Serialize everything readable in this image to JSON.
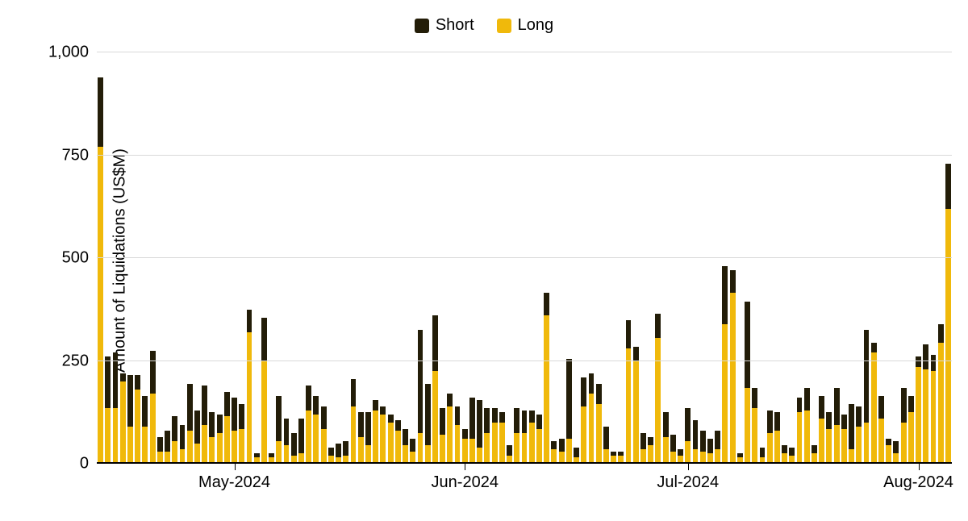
{
  "chart": {
    "type": "stacked-bar",
    "background_color": "#ffffff",
    "grid_color": "#d9d9d9",
    "baseline_color": "#000000",
    "font_family": "Arial, Helvetica, sans-serif",
    "legend": {
      "items": [
        {
          "name": "Short",
          "color": "#231d08"
        },
        {
          "name": "Long",
          "color": "#f0b90b"
        }
      ],
      "fontsize": 20
    },
    "y_axis": {
      "label": "Amount of Liquidations (US$M)",
      "label_fontsize": 20,
      "tick_fontsize": 20,
      "min": 0,
      "max": 1000,
      "ticks": [
        {
          "value": 0,
          "label": "0"
        },
        {
          "value": 250,
          "label": "250"
        },
        {
          "value": 500,
          "label": "500"
        },
        {
          "value": 750,
          "label": "750"
        },
        {
          "value": 1000,
          "label": "1,000"
        }
      ]
    },
    "x_axis": {
      "tick_fontsize": 20,
      "ticks": [
        {
          "index": 18,
          "label": "May-2024"
        },
        {
          "index": 49,
          "label": "Jun-2024"
        },
        {
          "index": 79,
          "label": "Jul-2024"
        },
        {
          "index": 110,
          "label": "Aug-2024"
        }
      ]
    },
    "series_colors": {
      "long": "#f0b90b",
      "short": "#231d08"
    },
    "bar_gap_ratio": 0.25,
    "data": [
      {
        "long": 770,
        "short": 170
      },
      {
        "long": 135,
        "short": 125
      },
      {
        "long": 135,
        "short": 135
      },
      {
        "long": 200,
        "short": 20
      },
      {
        "long": 90,
        "short": 125
      },
      {
        "long": 180,
        "short": 35
      },
      {
        "long": 90,
        "short": 75
      },
      {
        "long": 170,
        "short": 105
      },
      {
        "long": 30,
        "short": 35
      },
      {
        "long": 30,
        "short": 50
      },
      {
        "long": 55,
        "short": 60
      },
      {
        "long": 35,
        "short": 60
      },
      {
        "long": 80,
        "short": 115
      },
      {
        "long": 50,
        "short": 80
      },
      {
        "long": 95,
        "short": 95
      },
      {
        "long": 65,
        "short": 60
      },
      {
        "long": 75,
        "short": 45
      },
      {
        "long": 115,
        "short": 60
      },
      {
        "long": 80,
        "short": 80
      },
      {
        "long": 85,
        "short": 60
      },
      {
        "long": 320,
        "short": 55
      },
      {
        "long": 15,
        "short": 10
      },
      {
        "long": 250,
        "short": 105
      },
      {
        "long": 15,
        "short": 10
      },
      {
        "long": 55,
        "short": 110
      },
      {
        "long": 45,
        "short": 65
      },
      {
        "long": 20,
        "short": 55
      },
      {
        "long": 25,
        "short": 85
      },
      {
        "long": 130,
        "short": 60
      },
      {
        "long": 120,
        "short": 45
      },
      {
        "long": 85,
        "short": 55
      },
      {
        "long": 20,
        "short": 20
      },
      {
        "long": 15,
        "short": 35
      },
      {
        "long": 20,
        "short": 35
      },
      {
        "long": 140,
        "short": 65
      },
      {
        "long": 65,
        "short": 60
      },
      {
        "long": 45,
        "short": 80
      },
      {
        "long": 130,
        "short": 25
      },
      {
        "long": 120,
        "short": 20
      },
      {
        "long": 100,
        "short": 20
      },
      {
        "long": 80,
        "short": 25
      },
      {
        "long": 45,
        "short": 40
      },
      {
        "long": 30,
        "short": 30
      },
      {
        "long": 75,
        "short": 250
      },
      {
        "long": 45,
        "short": 150
      },
      {
        "long": 225,
        "short": 135
      },
      {
        "long": 70,
        "short": 65
      },
      {
        "long": 140,
        "short": 30
      },
      {
        "long": 95,
        "short": 45
      },
      {
        "long": 60,
        "short": 25
      },
      {
        "long": 60,
        "short": 100
      },
      {
        "long": 40,
        "short": 115
      },
      {
        "long": 75,
        "short": 60
      },
      {
        "long": 100,
        "short": 35
      },
      {
        "long": 100,
        "short": 25
      },
      {
        "long": 20,
        "short": 25
      },
      {
        "long": 75,
        "short": 60
      },
      {
        "long": 75,
        "short": 55
      },
      {
        "long": 100,
        "short": 30
      },
      {
        "long": 85,
        "short": 35
      },
      {
        "long": 360,
        "short": 55
      },
      {
        "long": 35,
        "short": 20
      },
      {
        "long": 30,
        "short": 30
      },
      {
        "long": 60,
        "short": 195
      },
      {
        "long": 15,
        "short": 25
      },
      {
        "long": 140,
        "short": 70
      },
      {
        "long": 170,
        "short": 50
      },
      {
        "long": 145,
        "short": 50
      },
      {
        "long": 35,
        "short": 55
      },
      {
        "long": 20,
        "short": 10
      },
      {
        "long": 20,
        "short": 10
      },
      {
        "long": 280,
        "short": 70
      },
      {
        "long": 250,
        "short": 35
      },
      {
        "long": 35,
        "short": 40
      },
      {
        "long": 45,
        "short": 20
      },
      {
        "long": 305,
        "short": 60
      },
      {
        "long": 65,
        "short": 60
      },
      {
        "long": 30,
        "short": 40
      },
      {
        "long": 20,
        "short": 15
      },
      {
        "long": 55,
        "short": 80
      },
      {
        "long": 35,
        "short": 70
      },
      {
        "long": 30,
        "short": 50
      },
      {
        "long": 25,
        "short": 35
      },
      {
        "long": 35,
        "short": 45
      },
      {
        "long": 340,
        "short": 140
      },
      {
        "long": 415,
        "short": 55
      },
      {
        "long": 15,
        "short": 10
      },
      {
        "long": 185,
        "short": 210
      },
      {
        "long": 135,
        "short": 50
      },
      {
        "long": 15,
        "short": 25
      },
      {
        "long": 75,
        "short": 55
      },
      {
        "long": 80,
        "short": 45
      },
      {
        "long": 25,
        "short": 20
      },
      {
        "long": 20,
        "short": 20
      },
      {
        "long": 125,
        "short": 35
      },
      {
        "long": 130,
        "short": 55
      },
      {
        "long": 25,
        "short": 20
      },
      {
        "long": 110,
        "short": 55
      },
      {
        "long": 85,
        "short": 40
      },
      {
        "long": 95,
        "short": 90
      },
      {
        "long": 85,
        "short": 35
      },
      {
        "long": 35,
        "short": 110
      },
      {
        "long": 90,
        "short": 50
      },
      {
        "long": 100,
        "short": 225
      },
      {
        "long": 270,
        "short": 25
      },
      {
        "long": 110,
        "short": 55
      },
      {
        "long": 45,
        "short": 15
      },
      {
        "long": 25,
        "short": 30
      },
      {
        "long": 100,
        "short": 85
      },
      {
        "long": 125,
        "short": 40
      },
      {
        "long": 235,
        "short": 25
      },
      {
        "long": 230,
        "short": 60
      },
      {
        "long": 225,
        "short": 40
      },
      {
        "long": 295,
        "short": 45
      },
      {
        "long": 620,
        "short": 110
      }
    ]
  }
}
